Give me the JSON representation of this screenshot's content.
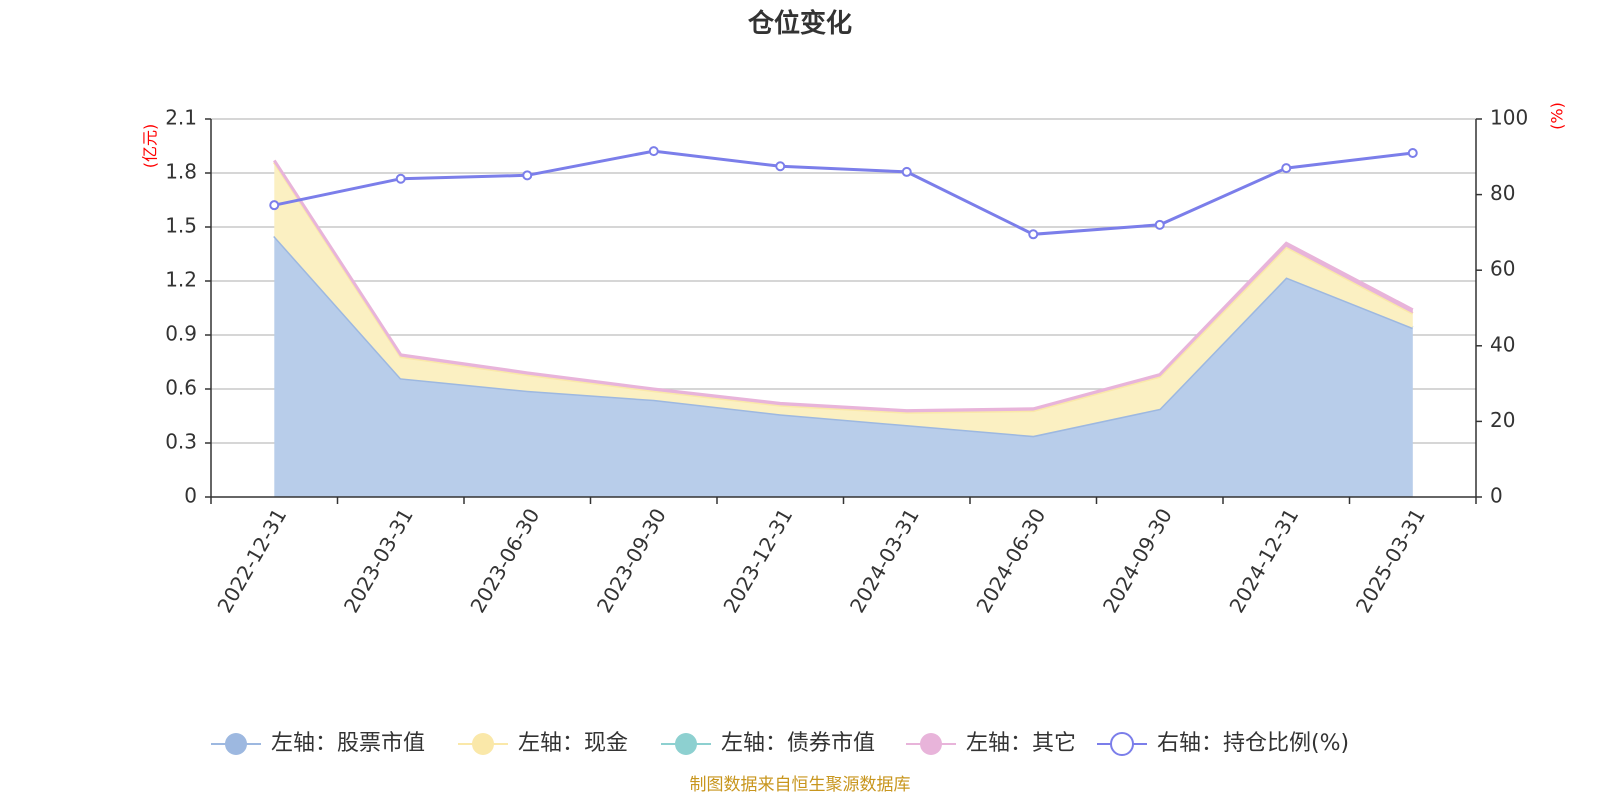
{
  "chart_data": {
    "type": "area",
    "title": "仓位变化",
    "left_axis": {
      "unit": "(亿元)",
      "ticks": [
        "0",
        "0.3",
        "0.6",
        "0.9",
        "1.2",
        "1.5",
        "1.8",
        "2.1"
      ],
      "ylim": [
        0,
        2.1
      ]
    },
    "right_axis": {
      "unit": "(%)",
      "ticks": [
        "0",
        "20",
        "40",
        "60",
        "80",
        "100"
      ],
      "ylim": [
        0,
        100
      ]
    },
    "categories": [
      "2022-12-31",
      "2023-03-31",
      "2023-06-30",
      "2023-09-30",
      "2023-12-31",
      "2024-03-31",
      "2024-06-30",
      "2024-09-30",
      "2024-12-31",
      "2025-03-31"
    ],
    "series": [
      {
        "name": "左轴：股票市值",
        "axis": "left",
        "color": "#9db8e0",
        "fill": "#b8cdea",
        "values": [
          1.45,
          0.66,
          0.59,
          0.54,
          0.46,
          0.4,
          0.34,
          0.49,
          1.22,
          0.94
        ]
      },
      {
        "name": "左轴：现金",
        "axis": "left",
        "color": "#fae8a9",
        "fill": "#fbf0c2",
        "values": [
          0.41,
          0.12,
          0.09,
          0.05,
          0.05,
          0.07,
          0.14,
          0.18,
          0.17,
          0.08
        ]
      },
      {
        "name": "左轴：债券市值",
        "axis": "left",
        "color": "#8dd0d0",
        "fill": "#8dd0d0",
        "values": [
          0,
          0,
          0,
          0,
          0,
          0,
          0,
          0,
          0,
          0
        ]
      },
      {
        "name": "左轴：其它",
        "axis": "left",
        "color": "#e8b4da",
        "fill": "#e8b4da",
        "values": [
          0.01,
          0.01,
          0.01,
          0.01,
          0.01,
          0.01,
          0.01,
          0.01,
          0.02,
          0.02
        ]
      },
      {
        "name": "右轴：持仓比例(%)",
        "axis": "right",
        "color": "#7b7eea",
        "values": [
          77.2,
          84.2,
          85.1,
          91.5,
          87.5,
          86.0,
          69.5,
          72.0,
          87.0,
          91.0
        ]
      }
    ],
    "grid": true,
    "legend_position": "bottom"
  },
  "footer": {
    "source": "制图数据来自恒生聚源数据库"
  }
}
